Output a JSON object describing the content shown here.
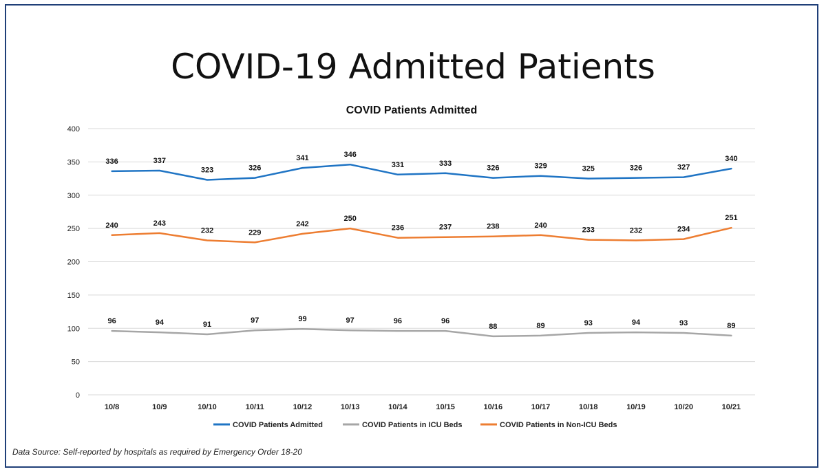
{
  "slide": {
    "title": "COVID-19 Admitted Patients",
    "source": "Data Source: Self-reported by hospitals as required by Emergency Order 18-20"
  },
  "chart_data": {
    "type": "line",
    "title": "COVID Patients Admitted",
    "categories": [
      "10/8",
      "10/9",
      "10/10",
      "10/11",
      "10/12",
      "10/13",
      "10/14",
      "10/15",
      "10/16",
      "10/17",
      "10/18",
      "10/19",
      "10/20",
      "10/21"
    ],
    "ylim": [
      0,
      400
    ],
    "yticks": [
      "0",
      "50",
      "100",
      "150",
      "200",
      "250",
      "300",
      "350",
      "400"
    ],
    "grid": true,
    "legend_position": "bottom",
    "series": [
      {
        "name": "COVID Patients Admitted",
        "color": "#1f74c4",
        "values": [
          336,
          337,
          323,
          326,
          341,
          346,
          331,
          333,
          326,
          329,
          325,
          326,
          327,
          340
        ]
      },
      {
        "name": "COVID Patients in ICU Beds",
        "color": "#a6a6a6",
        "values": [
          96,
          94,
          91,
          97,
          99,
          97,
          96,
          96,
          88,
          89,
          93,
          94,
          93,
          89
        ]
      },
      {
        "name": "COVID Patients in Non-ICU Beds",
        "color": "#ed7d31",
        "values": [
          240,
          243,
          232,
          229,
          242,
          250,
          236,
          237,
          238,
          240,
          233,
          232,
          234,
          251
        ]
      }
    ]
  }
}
